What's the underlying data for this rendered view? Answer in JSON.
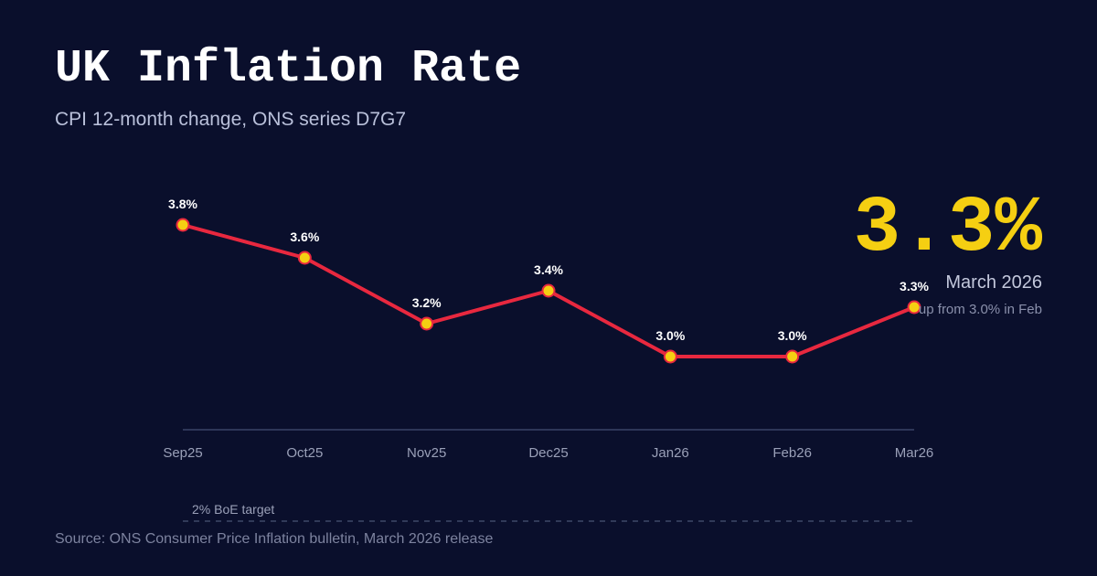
{
  "title": "UK Inflation Rate",
  "subtitle": "CPI 12-month change, ONS series D7G7",
  "headline": {
    "value": "3.3%",
    "period": "March 2026",
    "note": "up from 3.0% in Feb"
  },
  "source": "Source: ONS Consumer Price Inflation bulletin, March 2026 release",
  "colors": {
    "background": "#0a0f2c",
    "line": "#e8283f",
    "point_fill": "#f5cf12",
    "accent": "#f5cf12"
  },
  "chart_data": {
    "type": "line",
    "title": "UK Inflation Rate",
    "subtitle": "CPI 12-month change, ONS series D7G7",
    "categories": [
      "Sep25",
      "Oct25",
      "Nov25",
      "Dec25",
      "Jan26",
      "Feb26",
      "Mar26"
    ],
    "series": [
      {
        "values": [
          3.8,
          3.6,
          3.2,
          3.4,
          3.0,
          3.0,
          3.3
        ],
        "labels": [
          "3.8%",
          "3.6%",
          "3.2%",
          "3.4%",
          "3.0%",
          "3.0%",
          "3.3%"
        ]
      }
    ],
    "reference_line": {
      "value": 2.0,
      "label": "2% BoE target"
    },
    "ylim": [
      2.0,
      4.0
    ],
    "grid": false,
    "legend": "none"
  }
}
